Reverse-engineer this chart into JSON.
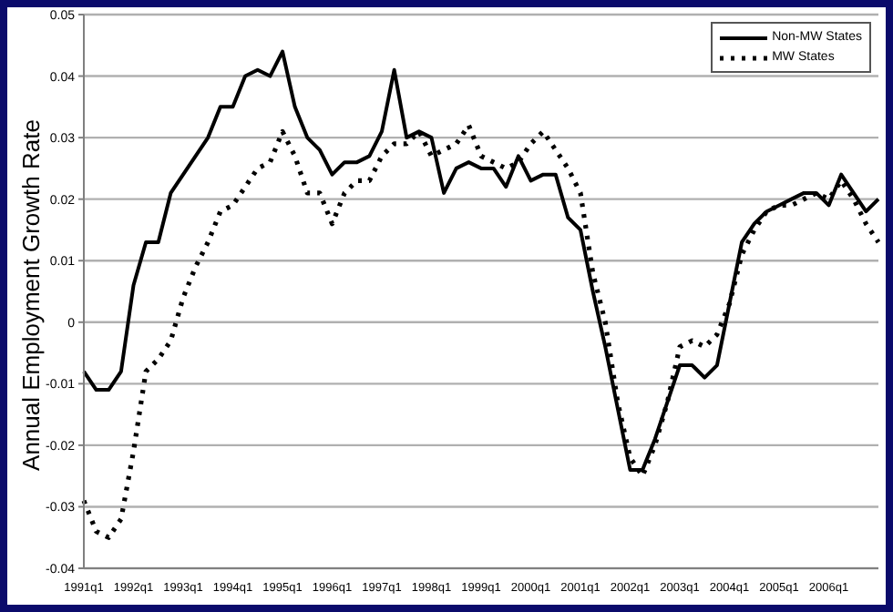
{
  "chart_data": {
    "type": "line",
    "ylabel": "Annual Employment Growth Rate",
    "categories": [
      "1991q1",
      null,
      null,
      null,
      "1992q1",
      null,
      null,
      null,
      "1993q1",
      null,
      null,
      null,
      "1994q1",
      null,
      null,
      null,
      "1995q1",
      null,
      null,
      null,
      "1996q1",
      null,
      null,
      null,
      "1997q1",
      null,
      null,
      null,
      "1998q1",
      null,
      null,
      null,
      "1999q1",
      null,
      null,
      null,
      "2000q1",
      null,
      null,
      null,
      "2001q1",
      null,
      null,
      null,
      "2002q1",
      null,
      null,
      null,
      "2003q1",
      null,
      null,
      null,
      "2004q1",
      null,
      null,
      null,
      "2005q1",
      null,
      null,
      null,
      "2006q1",
      null,
      null,
      null,
      null
    ],
    "series": [
      {
        "name": "Non-MW States",
        "color": "#000000",
        "line_style": "solid",
        "values": [
          -0.008,
          -0.011,
          -0.011,
          -0.008,
          0.006,
          0.013,
          0.013,
          0.021,
          0.024,
          0.027,
          0.03,
          0.035,
          0.035,
          0.04,
          0.041,
          0.04,
          0.044,
          0.035,
          0.03,
          0.028,
          0.024,
          0.026,
          0.026,
          0.027,
          0.031,
          0.041,
          0.03,
          0.031,
          0.03,
          0.021,
          0.025,
          0.026,
          0.025,
          0.025,
          0.022,
          0.027,
          0.023,
          0.024,
          0.024,
          0.017,
          0.015,
          0.005,
          -0.004,
          -0.014,
          -0.024,
          -0.024,
          -0.019,
          -0.013,
          -0.007,
          -0.007,
          -0.009,
          -0.007,
          0.003,
          0.013,
          0.016,
          0.018,
          0.019,
          0.02,
          0.021,
          0.021,
          0.019,
          0.024,
          0.021,
          0.018,
          0.02
        ]
      },
      {
        "name": "MW States",
        "color": "#000000",
        "line_style": "dotted",
        "values": [
          -0.029,
          -0.034,
          -0.035,
          -0.032,
          -0.021,
          -0.008,
          -0.006,
          -0.003,
          0.004,
          0.009,
          0.013,
          0.018,
          0.019,
          0.022,
          0.025,
          0.026,
          0.031,
          0.027,
          0.021,
          0.021,
          0.016,
          0.021,
          0.023,
          0.023,
          0.027,
          0.029,
          0.029,
          0.031,
          0.027,
          0.028,
          0.029,
          0.032,
          0.027,
          0.026,
          0.025,
          0.026,
          0.029,
          0.031,
          0.028,
          0.025,
          0.021,
          0.008,
          0.0,
          -0.013,
          -0.022,
          -0.025,
          -0.02,
          -0.013,
          -0.004,
          -0.003,
          -0.004,
          -0.002,
          0.003,
          0.011,
          0.015,
          0.018,
          0.019,
          0.019,
          0.02,
          0.021,
          0.02,
          0.023,
          0.02,
          0.016,
          0.013
        ]
      }
    ],
    "ylim": [
      -0.04,
      0.05
    ],
    "yticks": [
      -0.04,
      -0.03,
      -0.02,
      -0.01,
      0,
      0.01,
      0.02,
      0.03,
      0.04,
      0.05
    ],
    "grid": "y",
    "legend": "top right"
  }
}
